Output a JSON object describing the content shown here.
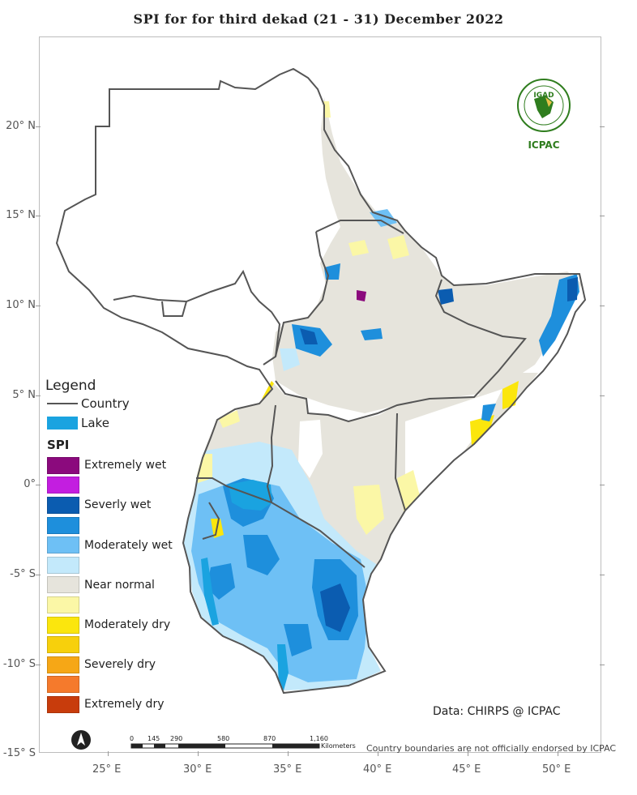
{
  "title": "SPI   for   for third  dekad (21 - 31)  December 2022",
  "lat_labels": [
    "20° N",
    "15° N",
    "10° N",
    "5° N",
    "0°",
    "-5° S",
    "-10° S",
    "-15° S"
  ],
  "lon_labels": [
    "25° E",
    "30° E",
    "35° E",
    "40° E",
    "45° E",
    "50° E"
  ],
  "legend": {
    "title": "Legend",
    "country_label": "Country",
    "lake_label": "Lake",
    "spi_title": "SPI",
    "classes": [
      {
        "label": "Extremely wet",
        "color": "#8b0a7d"
      },
      {
        "label": "",
        "color": "#c31ee0"
      },
      {
        "label": "Severly wet",
        "color": "#0b5cb0"
      },
      {
        "label": "",
        "color": "#1e8fdc"
      },
      {
        "label": "Moderately wet",
        "color": "#6ec0f5"
      },
      {
        "label": "",
        "color": "#c3e9fb"
      },
      {
        "label": "Near normal",
        "color": "#e6e4dc"
      },
      {
        "label": "",
        "color": "#fbf7a6"
      },
      {
        "label": "Moderately dry",
        "color": "#fbe60d"
      },
      {
        "label": "",
        "color": "#f7d00c"
      },
      {
        "label": "Severely dry",
        "color": "#f6a716"
      },
      {
        "label": "",
        "color": "#f57a2c"
      },
      {
        "label": "Extremely dry",
        "color": "#c83c0c"
      }
    ]
  },
  "source": "Data: CHIRPS @ ICPAC",
  "disclaimer": "Country boundaries are not officially endorsed by ICPAC",
  "scale": {
    "ticks": [
      "0",
      "145",
      "290",
      "580",
      "870",
      "1,160"
    ],
    "unit": "Kilometers"
  },
  "logo": {
    "top": "IGAD",
    "bottom": "ICPAC"
  },
  "colors": {
    "lake": "#1aa3e0",
    "country_line": "#555555"
  }
}
